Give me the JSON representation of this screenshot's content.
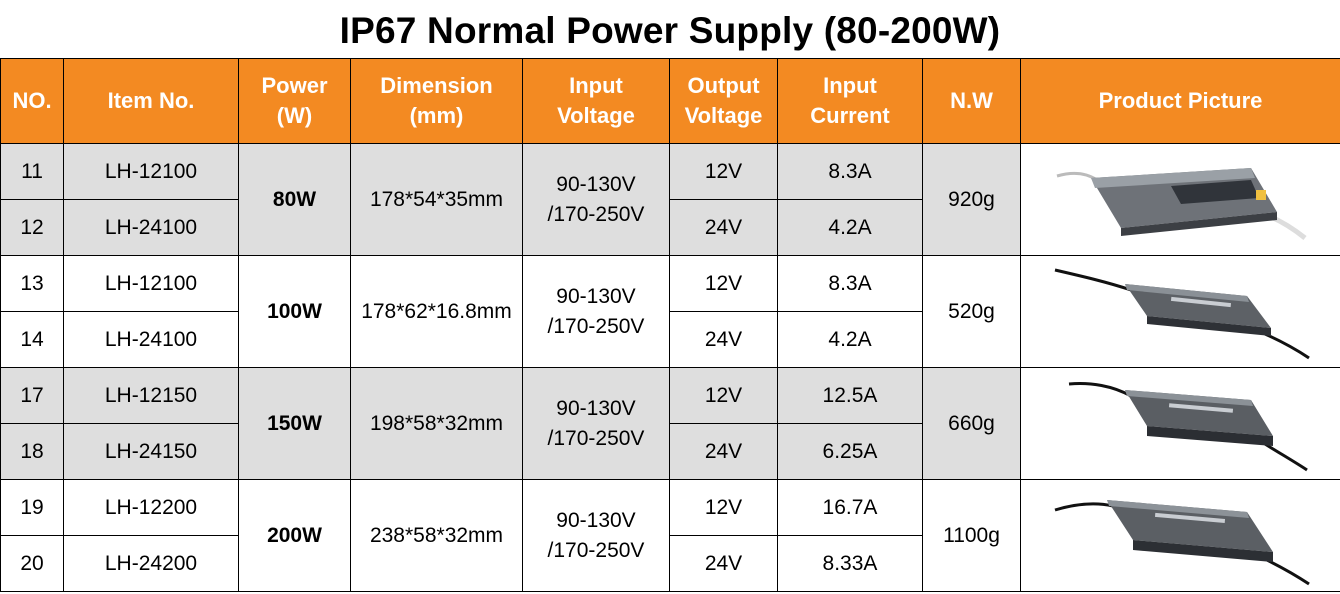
{
  "title": "IP67 Normal Power Supply (80-200W)",
  "headers": {
    "no": "NO.",
    "item": "Item No.",
    "power_1": "Power",
    "power_2": "(W)",
    "dimension_1": "Dimension",
    "dimension_2": "(mm)",
    "input_voltage_1": "Input",
    "input_voltage_2": "Voltage",
    "output_voltage_1": "Output",
    "output_voltage_2": "Voltage",
    "input_current_1": "Input",
    "input_current_2": "Current",
    "nw": "N.W",
    "picture": "Product Picture"
  },
  "groups": [
    {
      "power": "80W",
      "dimension": "178*54*35mm",
      "input_1": "90-130V",
      "input_2": "/170-250V",
      "nw": "920g",
      "picture_icon": "power-supply-image",
      "rows": [
        {
          "no": "11",
          "item": "LH-12100",
          "output": "12V",
          "current": "8.3A"
        },
        {
          "no": "12",
          "item": "LH-24100",
          "output": "24V",
          "current": "4.2A"
        }
      ]
    },
    {
      "power": "100W",
      "dimension": "178*62*16.8mm",
      "input_1": "90-130V",
      "input_2": "/170-250V",
      "nw": "520g",
      "picture_icon": "power-supply-image",
      "rows": [
        {
          "no": "13",
          "item": "LH-12100",
          "output": "12V",
          "current": "8.3A"
        },
        {
          "no": "14",
          "item": "LH-24100",
          "output": "24V",
          "current": "4.2A"
        }
      ]
    },
    {
      "power": "150W",
      "dimension": "198*58*32mm",
      "input_1": "90-130V",
      "input_2": "/170-250V",
      "nw": "660g",
      "picture_icon": "power-supply-image",
      "rows": [
        {
          "no": "17",
          "item": "LH-12150",
          "output": "12V",
          "current": "12.5A"
        },
        {
          "no": "18",
          "item": "LH-24150",
          "output": "24V",
          "current": "6.25A"
        }
      ]
    },
    {
      "power": "200W",
      "dimension": "238*58*32mm",
      "input_1": "90-130V",
      "input_2": "/170-250V",
      "nw": "1100g",
      "picture_icon": "power-supply-image",
      "rows": [
        {
          "no": "19",
          "item": "LH-12200",
          "output": "12V",
          "current": "16.7A"
        },
        {
          "no": "20",
          "item": "LH-24200",
          "output": "24V",
          "current": "8.33A"
        }
      ]
    }
  ],
  "colors": {
    "header_bg": "#f38a22",
    "header_text": "#ffffff",
    "shaded_row": "#dedede",
    "plain_row": "#ffffff"
  }
}
